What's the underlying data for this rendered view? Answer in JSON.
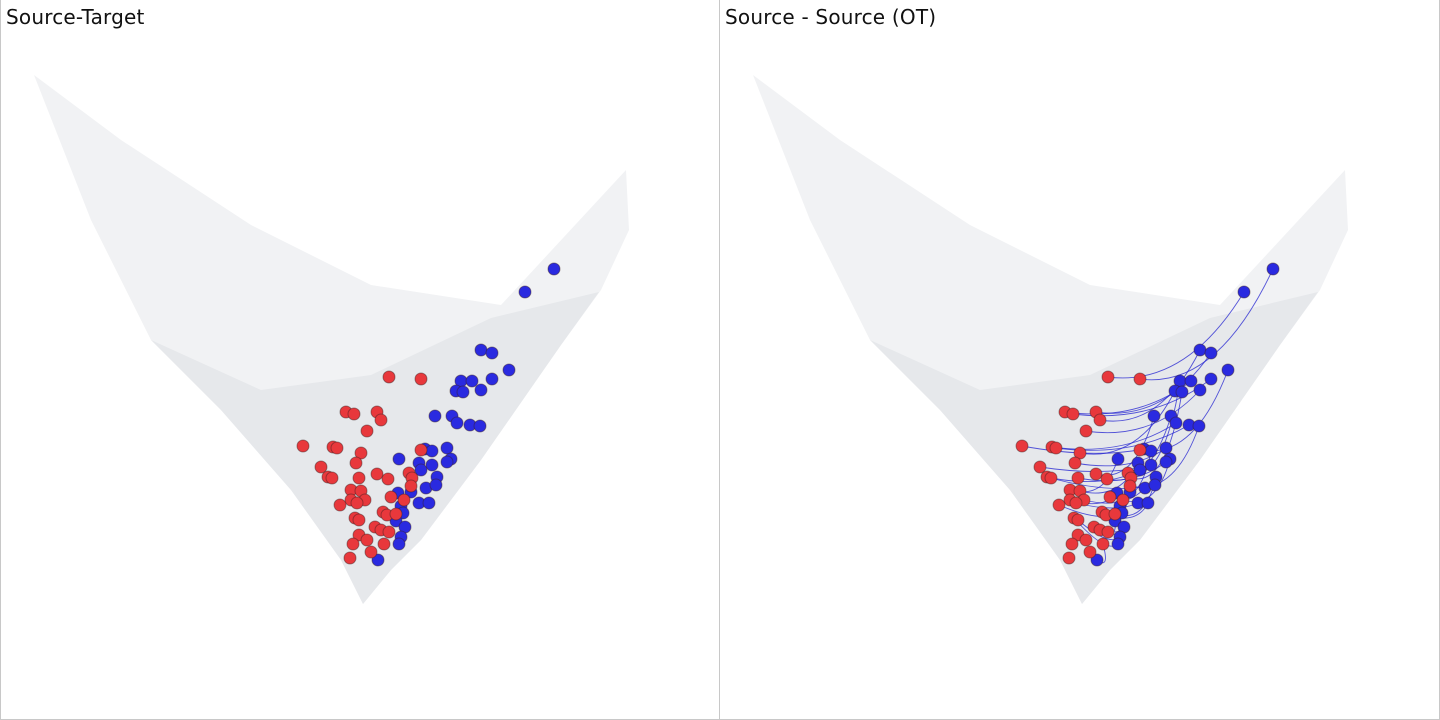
{
  "colors": {
    "source": "#e8383c",
    "target": "#2a2ae0",
    "transport_line": "#2020d0",
    "surface_back": "#f1f2f4",
    "surface_front": "#e6e8eb"
  },
  "chart_data": [
    {
      "type": "scatter",
      "title": "Source-Target",
      "grid": false,
      "legend": "none",
      "surface_outline": [
        [
          33,
          75
        ],
        [
          120,
          140
        ],
        [
          250,
          225
        ],
        [
          370,
          285
        ],
        [
          500,
          305
        ],
        [
          625,
          170
        ],
        [
          628,
          230
        ],
        [
          600,
          290
        ],
        [
          560,
          345
        ],
        [
          480,
          460
        ],
        [
          420,
          540
        ],
        [
          390,
          570
        ],
        [
          362,
          604
        ],
        [
          340,
          560
        ],
        [
          290,
          490
        ],
        [
          220,
          410
        ],
        [
          150,
          340
        ],
        [
          90,
          220
        ]
      ],
      "surface_front_outline": [
        [
          150,
          340
        ],
        [
          260,
          390
        ],
        [
          370,
          375
        ],
        [
          490,
          318
        ],
        [
          598,
          292
        ],
        [
          560,
          345
        ],
        [
          480,
          460
        ],
        [
          420,
          540
        ],
        [
          390,
          570
        ],
        [
          362,
          604
        ],
        [
          340,
          560
        ],
        [
          290,
          490
        ],
        [
          220,
          410
        ]
      ],
      "series": [
        {
          "role": "source",
          "points": [
            [
              388,
              377
            ],
            [
              420,
              379
            ],
            [
              345,
              412
            ],
            [
              353,
              414
            ],
            [
              376,
              412
            ],
            [
              380,
              420
            ],
            [
              366,
              431
            ],
            [
              302,
              446
            ],
            [
              332,
              447
            ],
            [
              336,
              448
            ],
            [
              360,
              453
            ],
            [
              420,
              450
            ],
            [
              320,
              467
            ],
            [
              355,
              463
            ],
            [
              327,
              477
            ],
            [
              331,
              478
            ],
            [
              358,
              478
            ],
            [
              376,
              474
            ],
            [
              387,
              479
            ],
            [
              408,
              473
            ],
            [
              411,
              478
            ],
            [
              410,
              486
            ],
            [
              350,
              490
            ],
            [
              360,
              491
            ],
            [
              350,
              500
            ],
            [
              364,
              500
            ],
            [
              339,
              505
            ],
            [
              356,
              503
            ],
            [
              390,
              497
            ],
            [
              403,
              500
            ],
            [
              382,
              512
            ],
            [
              354,
              518
            ],
            [
              358,
              520
            ],
            [
              386,
              515
            ],
            [
              395,
              514
            ],
            [
              374,
              527
            ],
            [
              380,
              530
            ],
            [
              388,
              532
            ],
            [
              358,
              535
            ],
            [
              352,
              544
            ],
            [
              366,
              540
            ],
            [
              383,
              544
            ],
            [
              370,
              552
            ],
            [
              349,
              558
            ]
          ]
        },
        {
          "role": "target",
          "points": [
            [
              553,
              269
            ],
            [
              524,
              292
            ],
            [
              480,
              350
            ],
            [
              491,
              353
            ],
            [
              508,
              370
            ],
            [
              460,
              381
            ],
            [
              471,
              381
            ],
            [
              491,
              379
            ],
            [
              455,
              391
            ],
            [
              462,
              392
            ],
            [
              480,
              390
            ],
            [
              434,
              416
            ],
            [
              451,
              416
            ],
            [
              456,
              423
            ],
            [
              469,
              425
            ],
            [
              479,
              426
            ],
            [
              424,
              449
            ],
            [
              431,
              451
            ],
            [
              446,
              448
            ],
            [
              398,
              459
            ],
            [
              450,
              459
            ],
            [
              418,
              463
            ],
            [
              431,
              465
            ],
            [
              446,
              462
            ],
            [
              420,
              470
            ],
            [
              436,
              477
            ],
            [
              397,
              493
            ],
            [
              410,
              492
            ],
            [
              425,
              488
            ],
            [
              435,
              485
            ],
            [
              400,
              506
            ],
            [
              418,
              503
            ],
            [
              428,
              503
            ],
            [
              402,
              513
            ],
            [
              395,
              521
            ],
            [
              404,
              527
            ],
            [
              400,
              537
            ],
            [
              398,
              544
            ],
            [
              377,
              560
            ]
          ]
        }
      ]
    },
    {
      "type": "scatter",
      "title": "Source - Source (OT)",
      "grid": false,
      "legend": "none"
    }
  ]
}
